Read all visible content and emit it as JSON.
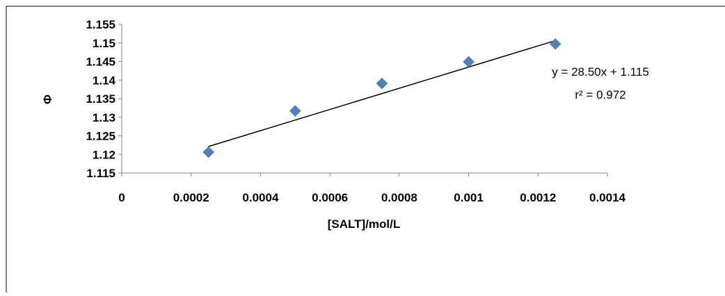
{
  "chart_data": {
    "type": "scatter",
    "title": "",
    "xlabel": "[SALT]/mol/L",
    "ylabel": "Φ",
    "xlim": [
      0,
      0.0014
    ],
    "ylim": [
      1.115,
      1.155
    ],
    "xticks": [
      {
        "value": 0,
        "label": "0"
      },
      {
        "value": 0.0002,
        "label": "0.0002"
      },
      {
        "value": 0.0004,
        "label": "0.0004"
      },
      {
        "value": 0.0006,
        "label": "0.0006"
      },
      {
        "value": 0.0008,
        "label": "0.0008"
      },
      {
        "value": 0.001,
        "label": "0.001"
      },
      {
        "value": 0.0012,
        "label": "0.0012"
      },
      {
        "value": 0.0014,
        "label": "0.0014"
      }
    ],
    "yticks": [
      {
        "value": 1.115,
        "label": "1.115"
      },
      {
        "value": 1.12,
        "label": "1.12"
      },
      {
        "value": 1.125,
        "label": "1.125"
      },
      {
        "value": 1.13,
        "label": "1.13"
      },
      {
        "value": 1.135,
        "label": "1.135"
      },
      {
        "value": 1.14,
        "label": "1.14"
      },
      {
        "value": 1.145,
        "label": "1.145"
      },
      {
        "value": 1.15,
        "label": "1.15"
      },
      {
        "value": 1.155,
        "label": "1.155"
      }
    ],
    "grid": false,
    "legend": "none",
    "series": [
      {
        "marker": "diamond",
        "color": "#4F81BD",
        "points": [
          {
            "x": 0.00025,
            "y": 1.1206
          },
          {
            "x": 0.0005,
            "y": 1.1317
          },
          {
            "x": 0.00075,
            "y": 1.1391
          },
          {
            "x": 0.001,
            "y": 1.1449
          },
          {
            "x": 0.00125,
            "y": 1.1497
          }
        ]
      }
    ],
    "trendline": {
      "type": "linear",
      "x_from": 0.00025,
      "x_to": 0.00125,
      "slope": 28.5,
      "intercept": 1.115,
      "color": "#000000"
    },
    "annotations": [
      {
        "text": "y = 28.50x + 1.115"
      },
      {
        "text": "r² = 0.972"
      }
    ]
  }
}
